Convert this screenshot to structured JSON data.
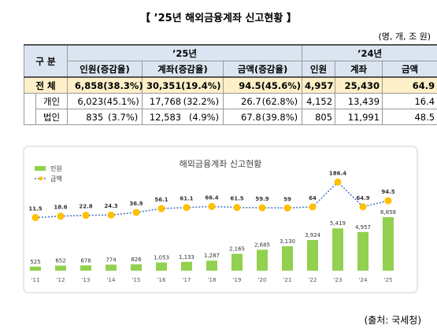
{
  "title": "【 ’25년 해외금융계좌 신고현황 】",
  "unit": "(명, 개, 조 원)",
  "table": {
    "header_top": [
      "구 분",
      "’25년",
      "’24년"
    ],
    "header_sub": [
      "인원(증감율)",
      "계좌(증감율)",
      "금액(증감율)",
      "인원",
      "계좌",
      "금액"
    ],
    "rows": [
      {
        "label": "전 체",
        "cells": [
          [
            "6,858",
            "(38.3%)"
          ],
          [
            "30,351",
            "(19.4%)"
          ],
          [
            "94.5",
            "(45.6%)"
          ],
          "4,957",
          "25,430",
          "64.9"
        ]
      },
      {
        "label": "개인",
        "cells": [
          [
            "6,023",
            "(45.1%)"
          ],
          [
            "17,768",
            "(32.2%)"
          ],
          [
            "26.7",
            "(62.8%)"
          ],
          "4,152",
          "13,439",
          "16.4"
        ]
      },
      {
        "label": "법인",
        "cells": [
          [
            "835",
            "(3.7%)"
          ],
          [
            "12,583",
            "(4.9%)"
          ],
          [
            "67.8",
            "(39.8%)"
          ],
          "805",
          "11,991",
          "48.5"
        ]
      }
    ]
  },
  "chart_data": {
    "type": "bar-line",
    "title": "해외금융계좌 신고현황",
    "categories": [
      "'11",
      "'12",
      "'13",
      "'14",
      "'15",
      "'16",
      "'17",
      "'18",
      "'19",
      "'20",
      "'21",
      "'22",
      "'23",
      "'24",
      "'25"
    ],
    "series": [
      {
        "name": "인원",
        "type": "bar",
        "color": "#92d050",
        "values": [
          525,
          652,
          678,
          774,
          826,
          1053,
          1133,
          1287,
          2165,
          2685,
          3130,
          3924,
          5419,
          4957,
          6858
        ],
        "value_labels": [
          "525",
          "652",
          "678",
          "774",
          "826",
          "1,053",
          "1,133",
          "1,287",
          "2,165",
          "2,685",
          "3,130",
          "3,924",
          "5,419",
          "4,957",
          "6,858"
        ]
      },
      {
        "name": "금액",
        "type": "line",
        "axis": "y2",
        "color": "#4472c4",
        "marker_color": "#ffc000",
        "values": [
          11.5,
          18.6,
          22.8,
          24.3,
          36.9,
          56.1,
          61.1,
          66.4,
          61.5,
          59.9,
          59,
          64,
          186.4,
          64.9,
          94.5
        ]
      }
    ],
    "ylim": [
      0,
      13000
    ],
    "y2lim": [
      -250,
      250
    ]
  },
  "source": "(출처: 국세청)"
}
